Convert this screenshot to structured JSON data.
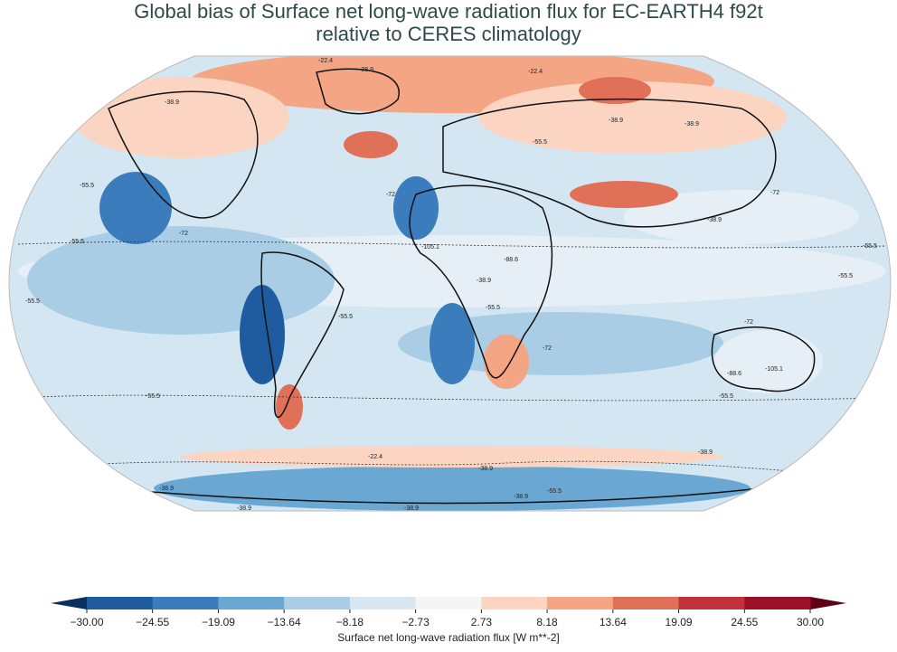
{
  "title": [
    "Global bias of Surface net long-wave radiation flux for EC-EARTH4 f92t",
    "relative to CERES climatology"
  ],
  "contour_labels": [
    -22.4,
    -38.9,
    -22.4,
    -38.9,
    -38.9,
    -38.9,
    -55.5,
    -55.5,
    -72.0,
    -72.0,
    -72.0,
    -55.5,
    -38.9,
    -55.5,
    -105.1,
    -88.6,
    -55.5,
    -55.5,
    -38.9,
    -55.5,
    -55.5,
    -72.0,
    -72.0,
    -88.6,
    -105.1,
    -55.5,
    -55.5,
    -38.9,
    -22.4,
    -38.9,
    -38.9,
    -38.9,
    -55.5,
    -38.9,
    -38.9
  ],
  "colorbar": {
    "label": "Surface net long-wave radiation flux [W m**-2]",
    "ticks": [
      {
        "value": -30,
        "label": "−30.00"
      },
      {
        "value": -24.55,
        "label": "−24.55"
      },
      {
        "value": -19.09,
        "label": "−19.09"
      },
      {
        "value": -13.64,
        "label": "−13.64"
      },
      {
        "value": -8.18,
        "label": "−8.18"
      },
      {
        "value": -2.73,
        "label": "−2.73"
      },
      {
        "value": 2.73,
        "label": "2.73"
      },
      {
        "value": 8.18,
        "label": "8.18"
      },
      {
        "value": 13.64,
        "label": "13.64"
      },
      {
        "value": 19.09,
        "label": "19.09"
      },
      {
        "value": 24.55,
        "label": "24.55"
      },
      {
        "value": 30,
        "label": "30.00"
      }
    ],
    "colors": [
      "#1f5c9f",
      "#3a7cbc",
      "#6aa8d3",
      "#a8cde4",
      "#d8e7f1",
      "#f5f5f5",
      "#fbd5c2",
      "#f4a584",
      "#e07158",
      "#c1323b",
      "#9a1127"
    ],
    "under_color": "#0a2f5f",
    "over_color": "#5e0018"
  }
}
